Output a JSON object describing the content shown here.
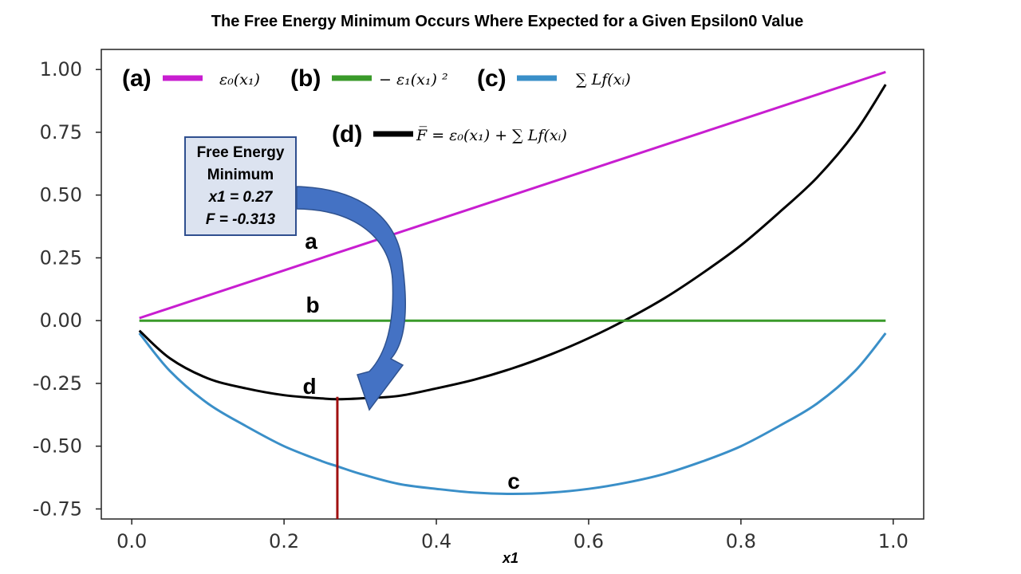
{
  "chart_data": {
    "type": "line",
    "title": "The Free Energy Minimum Occurs Where Expected for a Given Epsilon0 Value",
    "xlabel": "x1",
    "ylabel": "",
    "xlim": [
      -0.04,
      1.04
    ],
    "ylim": [
      -0.79,
      1.08
    ],
    "xticks": [
      0.0,
      0.2,
      0.4,
      0.6,
      0.8,
      1.0
    ],
    "xtick_labels": [
      "0.0",
      "0.2",
      "0.4",
      "0.6",
      "0.8",
      "1.0"
    ],
    "yticks": [
      1.0,
      0.75,
      0.5,
      0.25,
      0.0,
      -0.25,
      -0.5,
      -0.75
    ],
    "ytick_labels": [
      "1.00",
      "0.75",
      "0.50",
      "0.25",
      "0.00",
      "-0.25",
      "-0.50",
      "-0.75"
    ],
    "grid": false,
    "legend_position": "top",
    "x": [
      0.01,
      0.05,
      0.1,
      0.15,
      0.2,
      0.25,
      0.27,
      0.3,
      0.35,
      0.4,
      0.45,
      0.5,
      0.55,
      0.6,
      0.65,
      0.7,
      0.75,
      0.8,
      0.85,
      0.9,
      0.95,
      0.99
    ],
    "series": [
      {
        "tag": "(a)",
        "formula": "ε₀(x₁)",
        "label": "a",
        "color": "#c81ed0",
        "values": [
          0.01,
          0.05,
          0.1,
          0.15,
          0.2,
          0.25,
          0.27,
          0.3,
          0.35,
          0.4,
          0.45,
          0.5,
          0.55,
          0.6,
          0.65,
          0.7,
          0.75,
          0.8,
          0.85,
          0.9,
          0.95,
          0.99
        ]
      },
      {
        "tag": "(b)",
        "formula": "− ε₁(x₁) ²",
        "label": "b",
        "color": "#3a9a2a",
        "values": [
          0,
          0,
          0,
          0,
          0,
          0,
          0,
          0,
          0,
          0,
          0,
          0,
          0,
          0,
          0,
          0,
          0,
          0,
          0,
          0,
          0,
          0
        ]
      },
      {
        "tag": "(c)",
        "formula": "∑ Lf(xᵢ)",
        "label": "c",
        "color": "#3a8fc8",
        "values": [
          -0.05,
          -0.2,
          -0.33,
          -0.42,
          -0.5,
          -0.56,
          -0.58,
          -0.61,
          -0.65,
          -0.67,
          -0.685,
          -0.69,
          -0.685,
          -0.67,
          -0.645,
          -0.61,
          -0.56,
          -0.5,
          -0.42,
          -0.33,
          -0.2,
          -0.05
        ]
      },
      {
        "tag": "(d)",
        "formula": "F̅ = ε₀(x₁) + ∑ Lf(xᵢ)",
        "label": "d",
        "color": "#000000",
        "values": [
          -0.04,
          -0.15,
          -0.23,
          -0.27,
          -0.297,
          -0.31,
          -0.313,
          -0.31,
          -0.3,
          -0.27,
          -0.235,
          -0.19,
          -0.135,
          -0.07,
          0.005,
          0.09,
          0.19,
          0.3,
          0.43,
          0.57,
          0.75,
          0.94
        ]
      }
    ],
    "annotation": {
      "lines": [
        "Free Energy",
        "Minimum",
        "x1 = 0.27",
        "F = -0.313"
      ],
      "x": 0.27,
      "y": -0.313
    }
  },
  "colors": {
    "marker_line": "#a01010",
    "arrow_fill": "#4472c4",
    "arrow_stroke": "#2f528f"
  }
}
